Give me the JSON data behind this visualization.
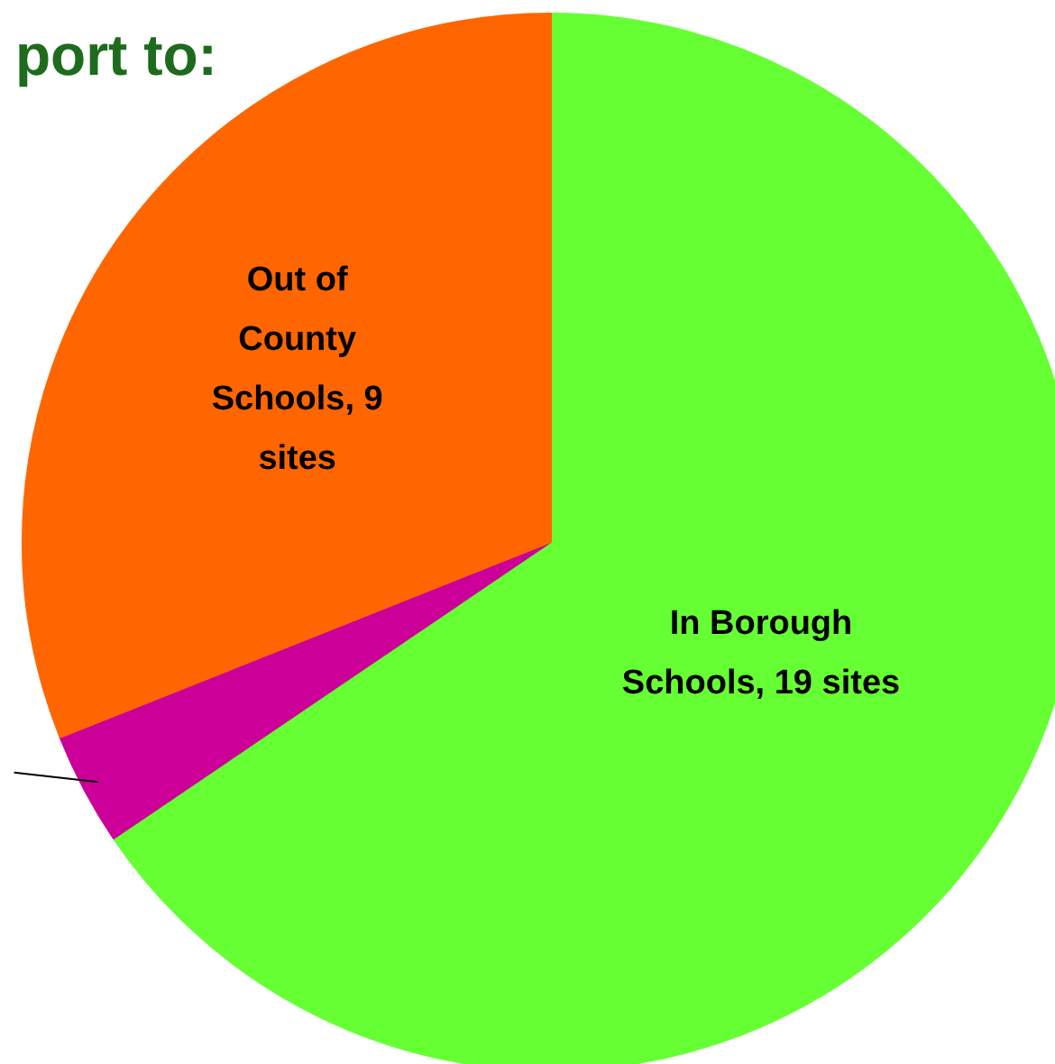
{
  "chart_data": {
    "type": "pie",
    "title": "port to:",
    "categories": [
      "In Borough Schools",
      null,
      "Out of County Schools"
    ],
    "values": [
      19,
      1,
      9
    ],
    "value_labels": [
      "19 sites",
      null,
      "9 sites"
    ],
    "colors": [
      "#66ff33",
      "#cc0099",
      "#ff6600"
    ]
  }
}
